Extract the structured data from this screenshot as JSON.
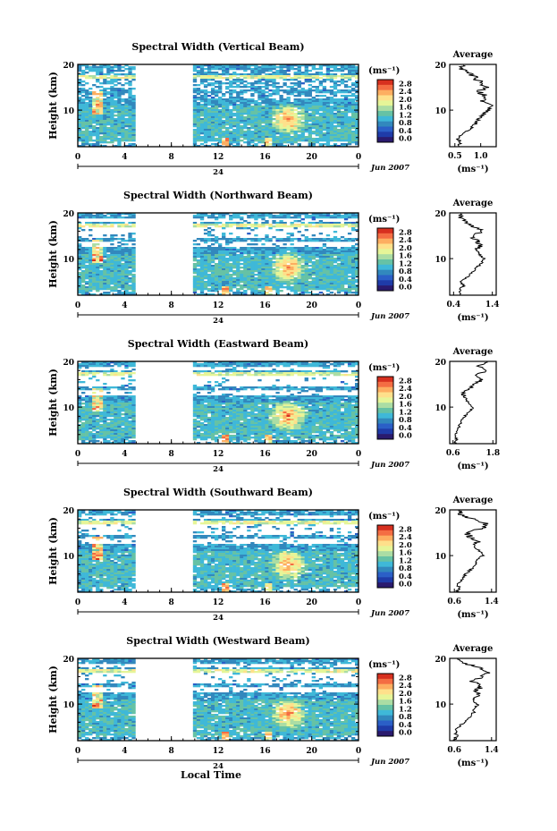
{
  "figure": {
    "x_axis_label": "Local Time"
  },
  "colorbar": {
    "unit_label": "(ms⁻¹)",
    "ticks": [
      "2.8",
      "2.4",
      "2.0",
      "1.6",
      "1.2",
      "0.8",
      "0.4",
      "0.0"
    ],
    "colors": [
      "#d7301f",
      "#f46d43",
      "#fdae61",
      "#fee08b",
      "#e6f598",
      "#abdda4",
      "#66c2a5",
      "#3fb8d8",
      "#3288bd",
      "#2b5fc7",
      "#1f3ba8",
      "#2a1a6e"
    ]
  },
  "chart_data": [
    {
      "type": "heatmap",
      "title": "Spectral Width (Vertical Beam)",
      "ylabel": "Height (km)",
      "y_ticks": [
        "20",
        "10"
      ],
      "x_ticks": [
        "0",
        "4",
        "8",
        "12",
        "16",
        "20",
        "0"
      ],
      "day_marker": "24",
      "date_label": "Jun 2007",
      "xlim": [
        0,
        24
      ],
      "ylim": [
        2,
        20
      ],
      "data_gap": [
        5,
        10
      ],
      "profile": {
        "title": "Average",
        "x_ticks": [
          "0.5",
          "1.0"
        ],
        "xlim": [
          0.4,
          1.3
        ],
        "y_ticks": [
          "20",
          "10"
        ],
        "xlabel": "(ms⁻¹)",
        "heights": [
          2,
          3,
          4,
          5,
          6,
          7,
          8,
          9,
          10,
          11,
          12,
          13,
          14,
          15,
          16,
          17,
          18,
          19,
          20
        ],
        "values": [
          0.55,
          0.6,
          0.55,
          0.7,
          0.8,
          0.9,
          0.95,
          1.05,
          1.15,
          1.2,
          1.0,
          1.1,
          0.95,
          1.1,
          1.0,
          0.9,
          0.8,
          0.65,
          0.6
        ]
      }
    },
    {
      "type": "heatmap",
      "title": "Spectral Width (Northward Beam)",
      "ylabel": "Height (km)",
      "y_ticks": [
        "20",
        "10"
      ],
      "x_ticks": [
        "0",
        "4",
        "8",
        "12",
        "16",
        "20",
        "0"
      ],
      "day_marker": "24",
      "date_label": "Jun 2007",
      "xlim": [
        0,
        24
      ],
      "ylim": [
        2,
        20
      ],
      "data_gap": [
        5,
        10
      ],
      "profile": {
        "title": "Average",
        "x_ticks": [
          "0.4",
          "1.4"
        ],
        "xlim": [
          0.3,
          1.5
        ],
        "y_ticks": [
          "20",
          "10"
        ],
        "xlabel": "(ms⁻¹)",
        "heights": [
          2,
          3,
          4,
          5,
          6,
          7,
          8,
          9,
          10,
          11,
          12,
          13,
          14,
          15,
          16,
          17,
          18,
          19,
          20
        ],
        "values": [
          0.6,
          0.55,
          0.65,
          0.6,
          0.75,
          0.9,
          1.0,
          1.1,
          1.2,
          1.05,
          1.0,
          1.1,
          1.0,
          0.85,
          1.15,
          0.9,
          0.7,
          0.6,
          0.55
        ]
      }
    },
    {
      "type": "heatmap",
      "title": "Spectral Width (Eastward Beam)",
      "ylabel": "Height (km)",
      "y_ticks": [
        "20",
        "10"
      ],
      "x_ticks": [
        "0",
        "4",
        "8",
        "12",
        "16",
        "20",
        "0"
      ],
      "day_marker": "24",
      "date_label": "Jun 2007",
      "xlim": [
        0,
        24
      ],
      "ylim": [
        2,
        20
      ],
      "data_gap": [
        5,
        10
      ],
      "profile": {
        "title": "Average",
        "x_ticks": [
          "0.6",
          "1.8"
        ],
        "xlim": [
          0.5,
          1.9
        ],
        "y_ticks": [
          "20",
          "10"
        ],
        "xlabel": "(ms⁻¹)",
        "heights": [
          2,
          3,
          4,
          5,
          6,
          7,
          8,
          9,
          10,
          11,
          12,
          13,
          14,
          15,
          16,
          17,
          18,
          19,
          20
        ],
        "values": [
          0.65,
          0.7,
          0.68,
          0.75,
          0.8,
          0.85,
          0.95,
          1.1,
          1.2,
          1.05,
          1.0,
          0.9,
          1.1,
          1.2,
          1.5,
          1.3,
          1.6,
          1.4,
          1.7
        ]
      }
    },
    {
      "type": "heatmap",
      "title": "Spectral Width (Southward Beam)",
      "ylabel": "Height (km)",
      "y_ticks": [
        "20",
        "10"
      ],
      "x_ticks": [
        "0",
        "4",
        "8",
        "12",
        "16",
        "20",
        "0"
      ],
      "day_marker": "24",
      "date_label": "Jun 2007",
      "xlim": [
        0,
        24
      ],
      "ylim": [
        2,
        20
      ],
      "data_gap": [
        5,
        10
      ],
      "profile": {
        "title": "Average",
        "x_ticks": [
          "0.6",
          "1.4"
        ],
        "xlim": [
          0.5,
          1.5
        ],
        "y_ticks": [
          "20",
          "10"
        ],
        "xlabel": "(ms⁻¹)",
        "heights": [
          2,
          3,
          4,
          5,
          6,
          7,
          8,
          9,
          10,
          11,
          12,
          13,
          14,
          15,
          16,
          17,
          18,
          19,
          20
        ],
        "values": [
          0.65,
          0.7,
          0.68,
          0.8,
          0.85,
          0.95,
          1.05,
          1.1,
          1.2,
          1.15,
          1.0,
          1.1,
          0.95,
          0.85,
          1.2,
          1.3,
          1.0,
          0.75,
          0.7
        ]
      }
    },
    {
      "type": "heatmap",
      "title": "Spectral Width (Westward Beam)",
      "ylabel": "Height (km)",
      "y_ticks": [
        "20",
        "10"
      ],
      "x_ticks": [
        "0",
        "4",
        "8",
        "12",
        "16",
        "20",
        "0"
      ],
      "day_marker": "24",
      "date_label": "Jun 2007",
      "xlim": [
        0,
        24
      ],
      "ylim": [
        2,
        20
      ],
      "data_gap": [
        5,
        10
      ],
      "profile": {
        "title": "Average",
        "x_ticks": [
          "0.6",
          "1.4"
        ],
        "xlim": [
          0.5,
          1.5
        ],
        "y_ticks": [
          "20",
          "10"
        ],
        "xlabel": "(ms⁻¹)",
        "heights": [
          2,
          3,
          4,
          5,
          6,
          7,
          8,
          9,
          10,
          11,
          12,
          13,
          14,
          15,
          16,
          17,
          18,
          19,
          20
        ],
        "values": [
          0.6,
          0.65,
          0.62,
          0.7,
          0.8,
          0.9,
          1.0,
          1.05,
          1.1,
          1.0,
          1.15,
          1.05,
          1.2,
          0.95,
          1.2,
          1.35,
          1.1,
          0.8,
          0.7
        ]
      }
    }
  ]
}
